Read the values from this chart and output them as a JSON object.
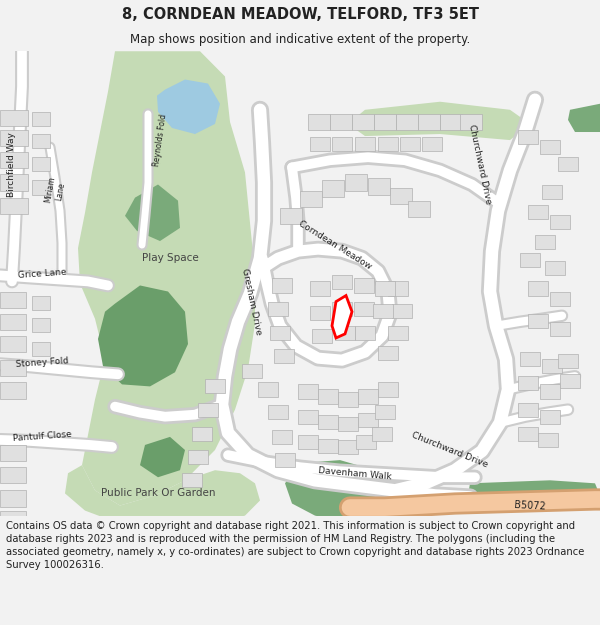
{
  "title": "8, CORNDEAN MEADOW, TELFORD, TF3 5ET",
  "subtitle": "Map shows position and indicative extent of the property.",
  "footer": "Contains OS data © Crown copyright and database right 2021. This information is subject to Crown copyright and database rights 2023 and is reproduced with the permission of HM Land Registry. The polygons (including the associated geometry, namely x, y co-ordinates) are subject to Crown copyright and database rights 2023 Ordnance Survey 100026316.",
  "bg_color": "#f2f2f2",
  "map_bg": "#ffffff",
  "green_light": "#c5dbb5",
  "green_dark": "#7aaa7a",
  "green_mid": "#6a9e6a",
  "building_color": "#e0e0e0",
  "building_outline": "#b0b0b0",
  "water_color": "#9ecae1",
  "road_major_fill": "#f5c8a0",
  "road_major_outline": "#d4a070",
  "highlight_color": "#ff0000",
  "highlight_fill": "#ffffff",
  "text_color": "#222222",
  "road_outline": "#cccccc",
  "title_fontsize": 10.5,
  "subtitle_fontsize": 8.5,
  "footer_fontsize": 7.2
}
